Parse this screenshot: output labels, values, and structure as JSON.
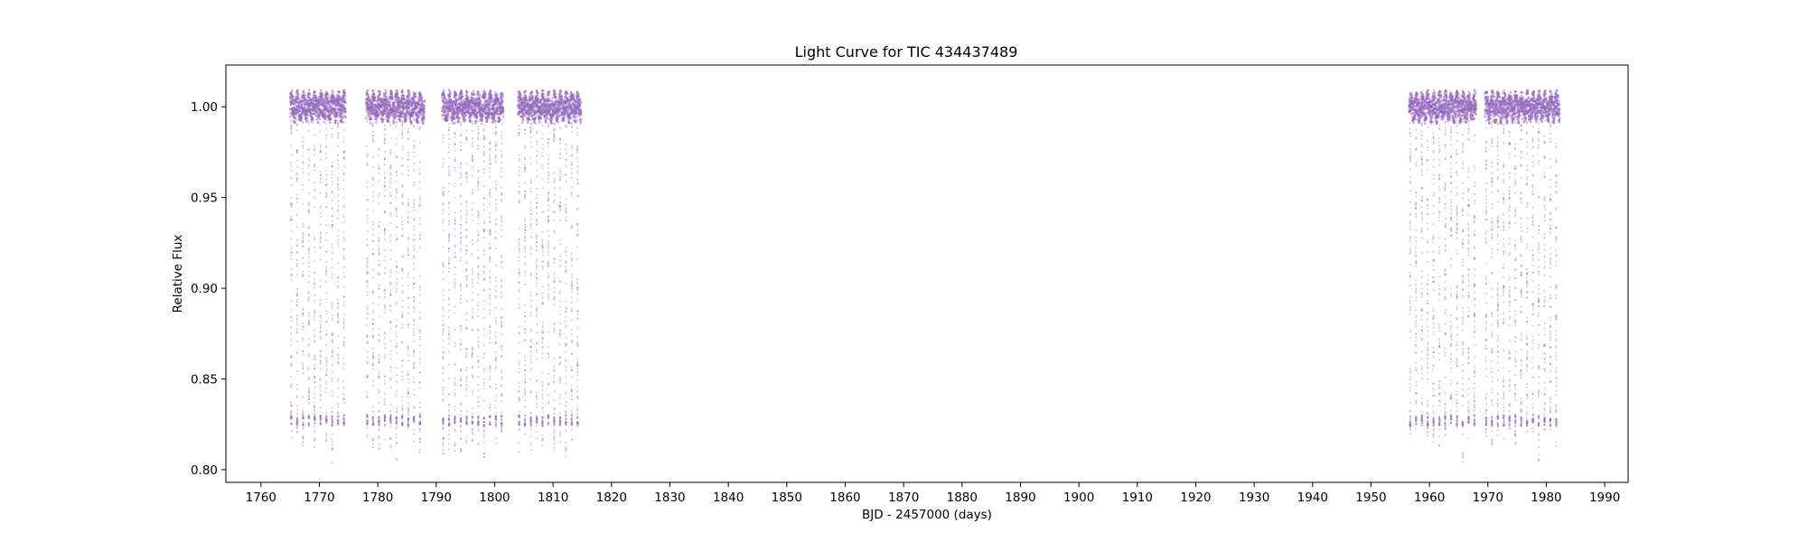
{
  "chart_data": {
    "type": "scatter",
    "title": "Light Curve for TIC 434437489",
    "xlabel": "BJD - 2457000 (days)",
    "ylabel": "Relative Flux",
    "xlim": [
      1754,
      1994
    ],
    "ylim": [
      0.793,
      1.023
    ],
    "xticks": [
      1760,
      1770,
      1780,
      1790,
      1800,
      1810,
      1820,
      1830,
      1840,
      1850,
      1860,
      1870,
      1880,
      1890,
      1900,
      1910,
      1920,
      1930,
      1940,
      1950,
      1960,
      1970,
      1980,
      1990
    ],
    "yticks": [
      0.8,
      0.85,
      0.9,
      0.95,
      1.0
    ],
    "grid": false,
    "legend": "none",
    "marker_color": "#9467bd",
    "series": [
      {
        "segments": [
          {
            "x_start": 1765.0,
            "x_end": 1774.5
          },
          {
            "x_start": 1778.0,
            "x_end": 1788.0
          },
          {
            "x_start": 1791.0,
            "x_end": 1801.5
          },
          {
            "x_start": 1804.0,
            "x_end": 1814.8
          },
          {
            "x_start": 1956.5,
            "x_end": 1968.0
          },
          {
            "x_start": 1969.5,
            "x_end": 1982.3
          }
        ],
        "baseline_flux": 1.0,
        "baseline_scatter": 0.008,
        "dip_period_days": 1.0,
        "dip_minimum_flux": 0.827,
        "dip_floor_min_flux": 0.803
      }
    ]
  }
}
